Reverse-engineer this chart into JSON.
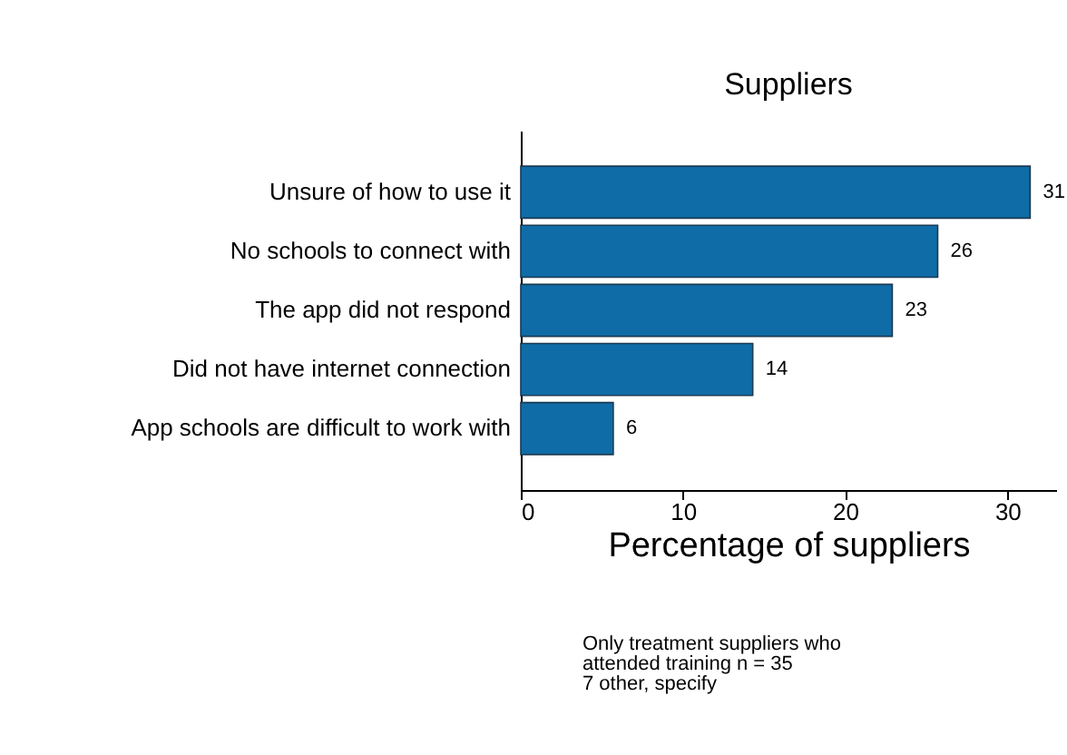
{
  "chart_data": {
    "type": "bar",
    "orientation": "horizontal",
    "title": "Suppliers",
    "categories": [
      "Unsure of how to use it",
      "No schools to connect with",
      "The app did not respond",
      "Did not have internet connection",
      "App schools are difficult to work with"
    ],
    "values": [
      31.4,
      25.7,
      22.9,
      14.3,
      5.7
    ],
    "value_labels": [
      "31",
      "26",
      "23",
      "14",
      "6"
    ],
    "color": "#0f6ca6",
    "xlabel": "Percentage of suppliers",
    "xlim": [
      0,
      33
    ],
    "xticks": [
      0,
      10,
      20,
      30
    ],
    "annotations": [
      "Only treatment suppliers who",
      "attended training n = 35",
      "7 other, specify"
    ]
  }
}
